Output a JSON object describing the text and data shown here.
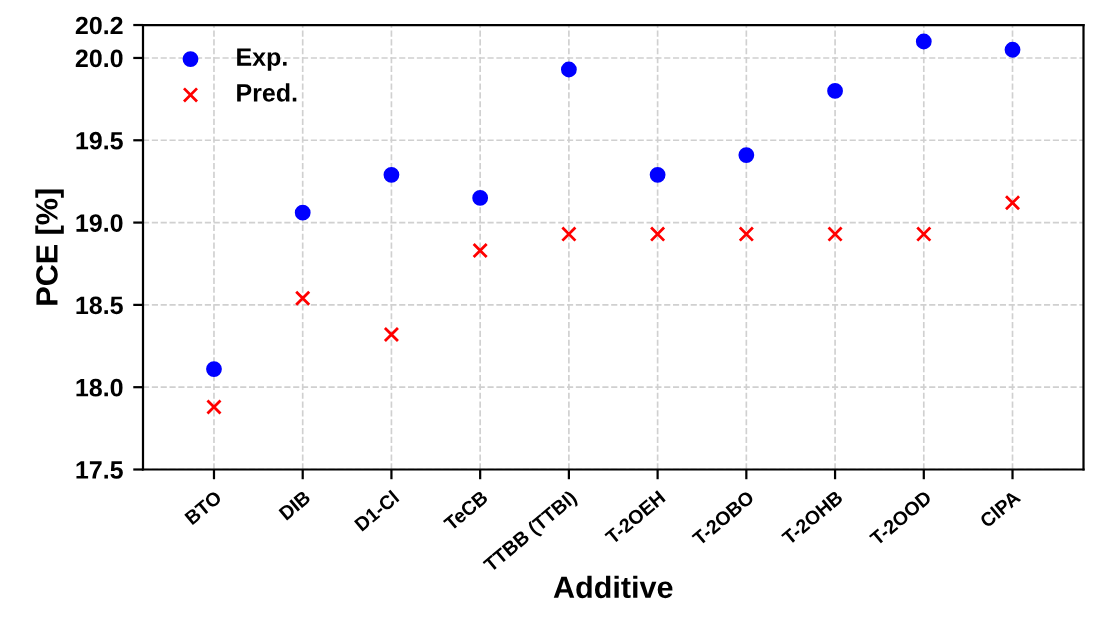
{
  "chart_data": {
    "type": "scatter",
    "xlabel": "Additive",
    "ylabel": "PCE [%]",
    "categories": [
      "BTO",
      "DIB",
      "D1-Cl",
      "TeCB",
      "TTBB (TTBI)",
      "T-2OEH",
      "T-2OBO",
      "T-2OHB",
      "T-2OOD",
      "ClPA"
    ],
    "series": [
      {
        "name": "Exp.",
        "color": "#0000ff",
        "marker": "circle",
        "values": [
          18.11,
          19.06,
          19.29,
          19.15,
          19.93,
          19.29,
          19.41,
          19.8,
          20.1,
          20.05
        ]
      },
      {
        "name": "Pred.",
        "color": "#ff0000",
        "marker": "cross",
        "values": [
          17.88,
          18.54,
          18.32,
          18.83,
          18.93,
          18.93,
          18.93,
          18.93,
          18.93,
          19.12
        ]
      }
    ],
    "ylim": [
      17.5,
      20.2
    ],
    "yticks": [
      17.5,
      {
        "value": 18,
        "label": "18.0"
      },
      18.5,
      {
        "value": 19,
        "label": "19.0"
      },
      19.5,
      {
        "value": 20,
        "label": "20.0"
      },
      20.2
    ],
    "grid": true,
    "legend": "top left"
  }
}
